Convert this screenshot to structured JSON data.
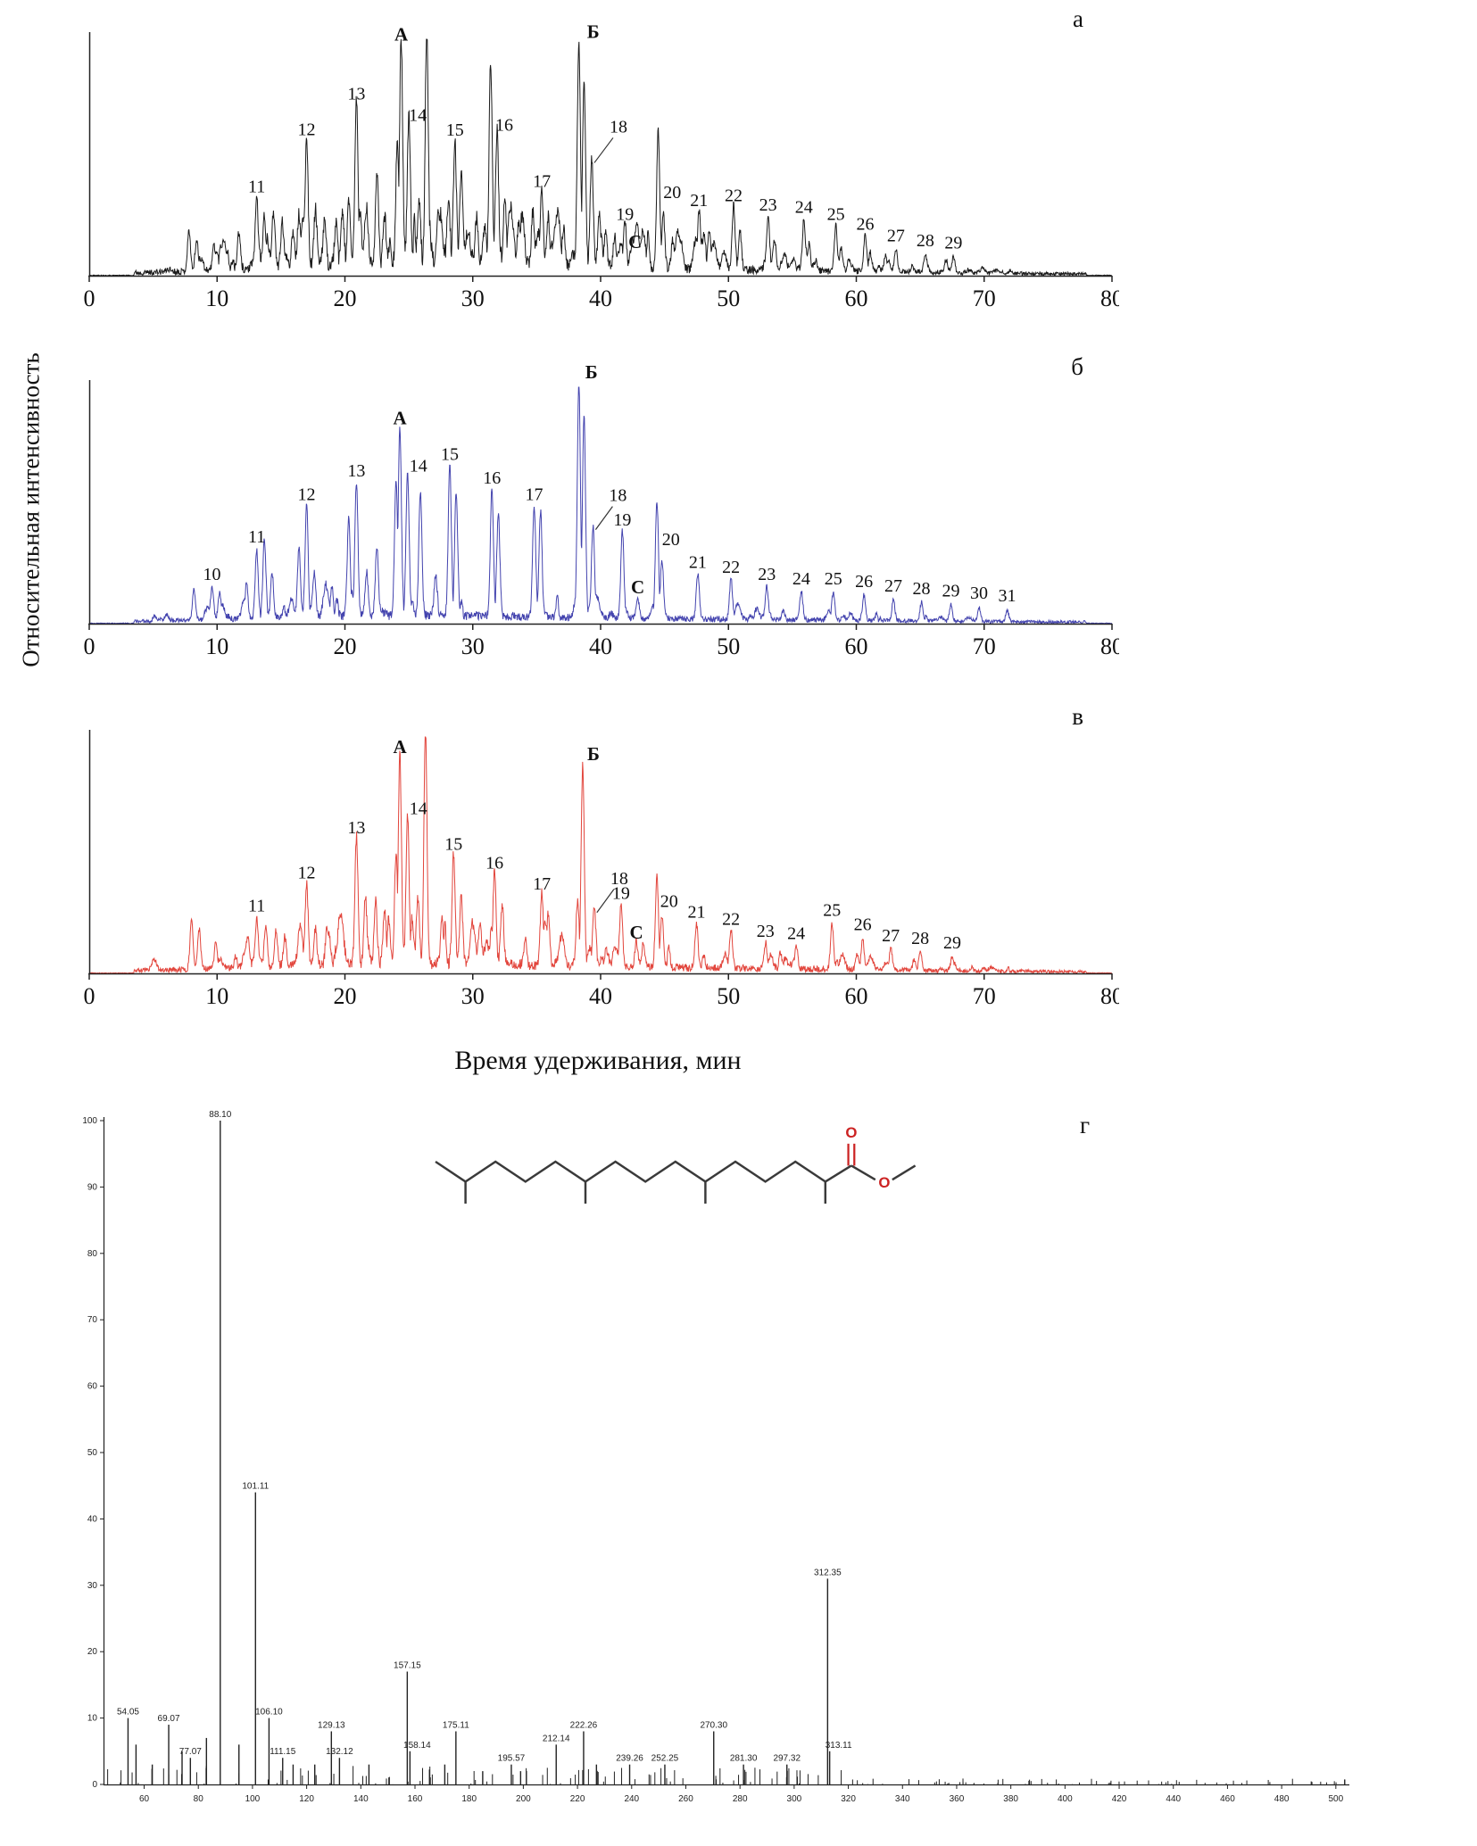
{
  "figure": {
    "y_axis_label": "Относительная интенсивность",
    "x_axis_label": "Время удерживания, мин"
  },
  "molecule": {
    "carbonyl_oxygen": "O",
    "ester_oxygen": "O"
  },
  "chart_data": [
    {
      "type": "line",
      "panel_label": "а",
      "color": "#1b1b1b",
      "seed": 11,
      "noise": 1.0,
      "minor_count": 110,
      "xlim": [
        0,
        80
      ],
      "x_ticks": [
        0,
        10,
        20,
        30,
        40,
        50,
        60,
        70,
        80
      ],
      "ylim": [
        0,
        100
      ],
      "xlabel": "Время удерживания, мин",
      "ylabel": "Относительная интенсивность",
      "peaks": [
        {
          "x": 7.8,
          "h": 17
        },
        {
          "x": 8.4,
          "h": 13
        },
        {
          "x": 10.3,
          "h": 11
        },
        {
          "x": 11.7,
          "h": 15
        },
        {
          "x": 13.1,
          "h": 30,
          "l": "11",
          "ly": 14
        },
        {
          "x": 13.7,
          "h": 22
        },
        {
          "x": 14.4,
          "h": 24
        },
        {
          "x": 15.1,
          "h": 19
        },
        {
          "x": 16.4,
          "h": 22
        },
        {
          "x": 17.0,
          "h": 55,
          "l": "12",
          "ly": 12
        },
        {
          "x": 17.7,
          "h": 24
        },
        {
          "x": 18.4,
          "h": 19
        },
        {
          "x": 19.3,
          "h": 17
        },
        {
          "x": 20.3,
          "h": 26
        },
        {
          "x": 20.9,
          "h": 70,
          "l": "13",
          "ly": 12
        },
        {
          "x": 21.7,
          "h": 23
        },
        {
          "x": 22.5,
          "h": 38
        },
        {
          "x": 23.1,
          "h": 21
        },
        {
          "x": 24.1,
          "h": 52
        },
        {
          "x": 24.4,
          "h": 95,
          "l": "А",
          "b": true,
          "ly": 12
        },
        {
          "x": 25.0,
          "h": 62,
          "l": "14",
          "lx": 10
        },
        {
          "x": 25.8,
          "h": 28
        },
        {
          "x": 26.4,
          "h": 100
        },
        {
          "x": 27.3,
          "h": 24
        },
        {
          "x": 28.1,
          "h": 28
        },
        {
          "x": 28.6,
          "h": 54,
          "l": "15",
          "ly": 14
        },
        {
          "x": 29.1,
          "h": 38
        },
        {
          "x": 30.3,
          "h": 20
        },
        {
          "x": 31.4,
          "h": 86
        },
        {
          "x": 31.9,
          "h": 58,
          "l": "16",
          "lx": 8
        },
        {
          "x": 32.5,
          "h": 28
        },
        {
          "x": 33.6,
          "h": 18
        },
        {
          "x": 34.7,
          "h": 23
        },
        {
          "x": 35.4,
          "h": 33,
          "l": "17",
          "ly": 12
        },
        {
          "x": 35.9,
          "h": 21
        },
        {
          "x": 37.1,
          "h": 16
        },
        {
          "x": 38.3,
          "h": 96,
          "l": "Б",
          "b": true,
          "lx": 16,
          "ly": 12
        },
        {
          "x": 38.7,
          "h": 78
        },
        {
          "x": 39.3,
          "h": 47,
          "l": "18",
          "lx": 30,
          "ly": 36,
          "ld": true
        },
        {
          "x": 39.9,
          "h": 23
        },
        {
          "x": 41.1,
          "h": 13
        },
        {
          "x": 41.9,
          "h": 19,
          "l": "19",
          "ly": 12
        },
        {
          "x": 42.7,
          "h": 8,
          "l": "С",
          "b": true,
          "ly": 10
        },
        {
          "x": 44.5,
          "h": 58
        },
        {
          "x": 44.9,
          "h": 23,
          "l": "20",
          "lx": 10,
          "ly": 26
        },
        {
          "x": 46.3,
          "h": 11
        },
        {
          "x": 47.7,
          "h": 25,
          "l": "21",
          "ly": 12
        },
        {
          "x": 48.1,
          "h": 15
        },
        {
          "x": 50.4,
          "h": 27,
          "l": "22",
          "ly": 12
        },
        {
          "x": 50.9,
          "h": 16
        },
        {
          "x": 53.1,
          "h": 23,
          "l": "23",
          "ly": 12
        },
        {
          "x": 53.6,
          "h": 13
        },
        {
          "x": 55.9,
          "h": 22,
          "l": "24",
          "ly": 12
        },
        {
          "x": 56.3,
          "h": 11
        },
        {
          "x": 58.4,
          "h": 19,
          "l": "25",
          "ly": 12
        },
        {
          "x": 58.8,
          "h": 10
        },
        {
          "x": 60.7,
          "h": 15,
          "l": "26",
          "ly": 12
        },
        {
          "x": 61.1,
          "h": 8
        },
        {
          "x": 63.1,
          "h": 10,
          "l": "27",
          "ly": 12
        },
        {
          "x": 65.4,
          "h": 8,
          "l": "28",
          "ly": 12
        },
        {
          "x": 67.6,
          "h": 7,
          "l": "29",
          "ly": 12
        }
      ]
    },
    {
      "type": "line",
      "panel_label": "б",
      "color": "#4343ae",
      "seed": 23,
      "noise": 0.45,
      "minor_count": 45,
      "xlim": [
        0,
        80
      ],
      "x_ticks": [
        0,
        10,
        20,
        30,
        40,
        50,
        60,
        70,
        80
      ],
      "ylim": [
        0,
        100
      ],
      "xlabel": "Время удерживания, мин",
      "ylabel": "Относительная интенсивность",
      "peaks": [
        {
          "x": 8.2,
          "h": 13
        },
        {
          "x": 9.6,
          "h": 14,
          "l": "10",
          "ly": 12
        },
        {
          "x": 10.2,
          "h": 11
        },
        {
          "x": 12.3,
          "h": 15
        },
        {
          "x": 13.1,
          "h": 29,
          "l": "11",
          "ly": 14
        },
        {
          "x": 13.7,
          "h": 33
        },
        {
          "x": 14.3,
          "h": 19
        },
        {
          "x": 16.4,
          "h": 29
        },
        {
          "x": 17.0,
          "h": 47,
          "l": "12",
          "ly": 14
        },
        {
          "x": 17.6,
          "h": 19
        },
        {
          "x": 20.3,
          "h": 41
        },
        {
          "x": 20.9,
          "h": 57,
          "l": "13",
          "ly": 14
        },
        {
          "x": 21.7,
          "h": 19
        },
        {
          "x": 22.5,
          "h": 29
        },
        {
          "x": 24.0,
          "h": 58
        },
        {
          "x": 24.3,
          "h": 79,
          "l": "А",
          "b": true,
          "ly": 14
        },
        {
          "x": 24.9,
          "h": 61,
          "l": "14",
          "lx": 12
        },
        {
          "x": 25.9,
          "h": 53
        },
        {
          "x": 27.1,
          "h": 18
        },
        {
          "x": 28.2,
          "h": 64,
          "l": "15",
          "ly": 14
        },
        {
          "x": 28.7,
          "h": 53
        },
        {
          "x": 31.5,
          "h": 54,
          "l": "16",
          "ly": 14
        },
        {
          "x": 32.0,
          "h": 44
        },
        {
          "x": 34.8,
          "h": 47,
          "l": "17",
          "ly": 14
        },
        {
          "x": 35.3,
          "h": 45
        },
        {
          "x": 38.3,
          "h": 100,
          "l": "Б",
          "b": true,
          "lx": 14,
          "ly": 10
        },
        {
          "x": 38.7,
          "h": 86
        },
        {
          "x": 39.4,
          "h": 39,
          "l": "18",
          "lx": 28,
          "ly": 34,
          "ld": true
        },
        {
          "x": 41.7,
          "h": 37,
          "l": "19",
          "ly": 12
        },
        {
          "x": 42.9,
          "h": 9,
          "l": "С",
          "b": true,
          "ly": 10
        },
        {
          "x": 44.4,
          "h": 50
        },
        {
          "x": 44.8,
          "h": 25,
          "l": "20",
          "lx": 10,
          "ly": 22
        },
        {
          "x": 47.6,
          "h": 19,
          "l": "21",
          "ly": 12
        },
        {
          "x": 50.2,
          "h": 17,
          "l": "22",
          "ly": 12
        },
        {
          "x": 53.0,
          "h": 14,
          "l": "23",
          "ly": 12
        },
        {
          "x": 55.7,
          "h": 12,
          "l": "24",
          "ly": 12
        },
        {
          "x": 58.2,
          "h": 12,
          "l": "25",
          "ly": 12
        },
        {
          "x": 60.6,
          "h": 11,
          "l": "26",
          "ly": 12
        },
        {
          "x": 62.9,
          "h": 9,
          "l": "27",
          "ly": 12
        },
        {
          "x": 65.1,
          "h": 8,
          "l": "28",
          "ly": 12
        },
        {
          "x": 67.4,
          "h": 7,
          "l": "29",
          "ly": 12
        },
        {
          "x": 69.6,
          "h": 6,
          "l": "30",
          "ly": 12
        },
        {
          "x": 71.8,
          "h": 5,
          "l": "31",
          "ly": 12
        }
      ]
    },
    {
      "type": "line",
      "panel_label": "в",
      "color": "#e2453c",
      "seed": 37,
      "noise": 0.7,
      "minor_count": 70,
      "xlim": [
        0,
        80
      ],
      "x_ticks": [
        0,
        10,
        20,
        30,
        40,
        50,
        60,
        70,
        80
      ],
      "ylim": [
        0,
        100
      ],
      "xlabel": "Время удерживания, мин",
      "ylabel": "Относительная интенсивность",
      "peaks": [
        {
          "x": 8.0,
          "h": 21
        },
        {
          "x": 8.6,
          "h": 17
        },
        {
          "x": 9.9,
          "h": 11
        },
        {
          "x": 12.4,
          "h": 13
        },
        {
          "x": 13.1,
          "h": 21,
          "l": "11",
          "ly": 14
        },
        {
          "x": 13.8,
          "h": 17
        },
        {
          "x": 14.6,
          "h": 15
        },
        {
          "x": 15.3,
          "h": 13
        },
        {
          "x": 17.0,
          "h": 35,
          "l": "12",
          "ly": 14
        },
        {
          "x": 17.7,
          "h": 15
        },
        {
          "x": 18.6,
          "h": 17
        },
        {
          "x": 20.9,
          "h": 54,
          "l": "13",
          "ly": 14
        },
        {
          "x": 21.6,
          "h": 28
        },
        {
          "x": 22.4,
          "h": 26
        },
        {
          "x": 23.1,
          "h": 24
        },
        {
          "x": 24.0,
          "h": 48
        },
        {
          "x": 24.3,
          "h": 88,
          "l": "А",
          "b": true,
          "ly": 14
        },
        {
          "x": 24.9,
          "h": 64,
          "l": "14",
          "lx": 12
        },
        {
          "x": 25.7,
          "h": 28
        },
        {
          "x": 26.3,
          "h": 100
        },
        {
          "x": 27.6,
          "h": 18
        },
        {
          "x": 28.5,
          "h": 47,
          "l": "15",
          "ly": 14
        },
        {
          "x": 29.1,
          "h": 28
        },
        {
          "x": 30.6,
          "h": 13
        },
        {
          "x": 31.7,
          "h": 39,
          "l": "16",
          "ly": 14
        },
        {
          "x": 32.3,
          "h": 26
        },
        {
          "x": 34.1,
          "h": 11
        },
        {
          "x": 35.4,
          "h": 31,
          "l": "17",
          "ly": 12
        },
        {
          "x": 35.9,
          "h": 22
        },
        {
          "x": 38.2,
          "h": 28
        },
        {
          "x": 38.6,
          "h": 85,
          "l": "Б",
          "b": true,
          "lx": 12,
          "ly": 14
        },
        {
          "x": 39.5,
          "h": 25,
          "l": "18",
          "lx": 28,
          "ly": 34,
          "ld": true
        },
        {
          "x": 41.6,
          "h": 27,
          "l": "19",
          "ly": 12
        },
        {
          "x": 42.8,
          "h": 11,
          "l": "С",
          "b": true,
          "ly": 10
        },
        {
          "x": 44.4,
          "h": 38
        },
        {
          "x": 44.8,
          "h": 22,
          "l": "20",
          "lx": 8,
          "ly": 16
        },
        {
          "x": 47.5,
          "h": 19,
          "l": "21",
          "ly": 12
        },
        {
          "x": 50.2,
          "h": 16,
          "l": "22",
          "ly": 12
        },
        {
          "x": 52.9,
          "h": 11,
          "l": "23",
          "ly": 12
        },
        {
          "x": 55.3,
          "h": 10,
          "l": "24",
          "ly": 12
        },
        {
          "x": 58.1,
          "h": 19,
          "l": "25",
          "ly": 14
        },
        {
          "x": 60.5,
          "h": 13,
          "l": "26",
          "ly": 14
        },
        {
          "x": 62.7,
          "h": 9,
          "l": "27",
          "ly": 12
        },
        {
          "x": 65.0,
          "h": 8,
          "l": "28",
          "ly": 12
        },
        {
          "x": 67.5,
          "h": 6,
          "l": "29",
          "ly": 12
        }
      ]
    },
    {
      "type": "bar",
      "panel_label": "г",
      "color": "#222222",
      "seed": 99,
      "xlim": [
        45,
        505
      ],
      "ylim": [
        0,
        100
      ],
      "x_ticks": [
        60,
        80,
        100,
        120,
        140,
        160,
        180,
        200,
        220,
        240,
        260,
        280,
        300,
        320,
        340,
        360,
        380,
        400,
        420,
        440,
        460,
        480,
        500
      ],
      "y_ticks": [
        0,
        10,
        20,
        30,
        40,
        50,
        60,
        70,
        80,
        90,
        100
      ],
      "peaks": [
        {
          "mz": 54.05,
          "i": 10,
          "l": "54.05"
        },
        {
          "mz": 57,
          "i": 6
        },
        {
          "mz": 63,
          "i": 3
        },
        {
          "mz": 69.07,
          "i": 9,
          "l": "69.07"
        },
        {
          "mz": 74,
          "i": 5
        },
        {
          "mz": 77.07,
          "i": 4,
          "l": "77.07"
        },
        {
          "mz": 83,
          "i": 7
        },
        {
          "mz": 88.1,
          "i": 100,
          "l": "88.10"
        },
        {
          "mz": 95,
          "i": 6
        },
        {
          "mz": 101.11,
          "i": 44,
          "l": "101.11"
        },
        {
          "mz": 106.1,
          "i": 10,
          "l": "106.10"
        },
        {
          "mz": 111.15,
          "i": 4,
          "l": "111.15"
        },
        {
          "mz": 115,
          "i": 3
        },
        {
          "mz": 123,
          "i": 3
        },
        {
          "mz": 129.13,
          "i": 8,
          "l": "129.13"
        },
        {
          "mz": 132.12,
          "i": 4,
          "l": "132.12"
        },
        {
          "mz": 143,
          "i": 3
        },
        {
          "mz": 157.15,
          "i": 17,
          "l": "157.15"
        },
        {
          "mz": 158.14,
          "i": 5,
          "l": "158.14",
          "lx": 8
        },
        {
          "mz": 171,
          "i": 3
        },
        {
          "mz": 175.11,
          "i": 8,
          "l": "175.11"
        },
        {
          "mz": 185,
          "i": 2
        },
        {
          "mz": 195.57,
          "i": 3,
          "l": "195.57"
        },
        {
          "mz": 199,
          "i": 2
        },
        {
          "mz": 212.14,
          "i": 6,
          "l": "212.14"
        },
        {
          "mz": 222.26,
          "i": 8,
          "l": "222.26"
        },
        {
          "mz": 227,
          "i": 3
        },
        {
          "mz": 239.26,
          "i": 3,
          "l": "239.26"
        },
        {
          "mz": 252.25,
          "i": 3,
          "l": "252.25"
        },
        {
          "mz": 270.3,
          "i": 8,
          "l": "270.30"
        },
        {
          "mz": 281.3,
          "i": 3,
          "l": "281.30"
        },
        {
          "mz": 297.32,
          "i": 3,
          "l": "297.32"
        },
        {
          "mz": 312.35,
          "i": 31,
          "l": "312.35"
        },
        {
          "mz": 313.11,
          "i": 5,
          "l": "313.11",
          "lx": 10
        }
      ]
    }
  ]
}
